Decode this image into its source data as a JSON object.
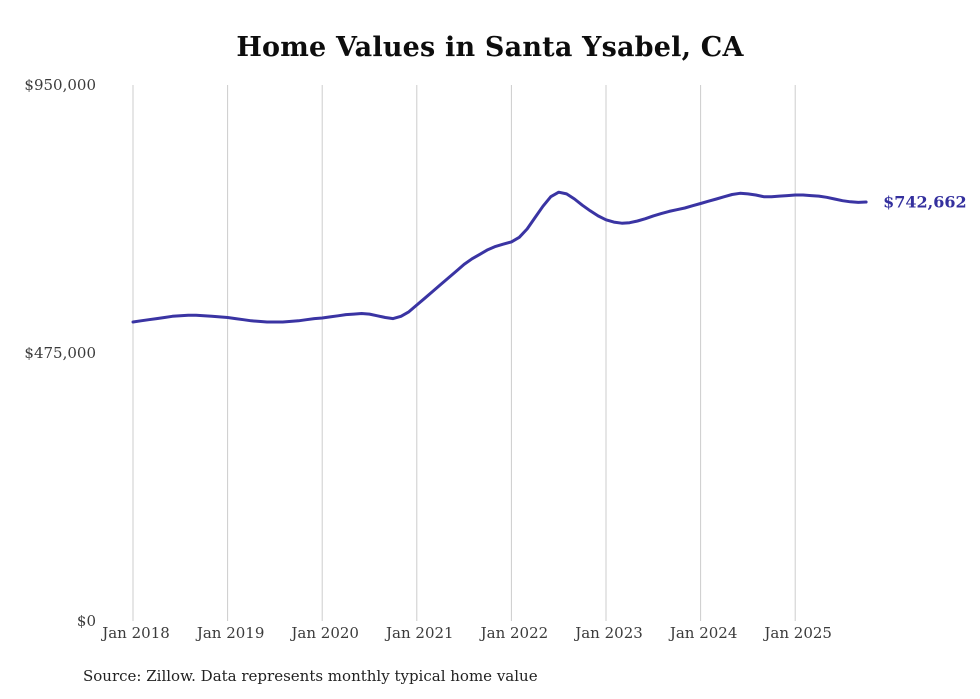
{
  "title": "Home Values in Santa Ysabel, CA",
  "source_note": "Source: Zillow. Data represents monthly typical home value",
  "chart_data": {
    "type": "line",
    "title": "Home Values in Santa Ysabel, CA",
    "x_start": "Jan 2018",
    "x_end": "Oct 2025",
    "x_tick_labels": [
      "Jan 2018",
      "Jan 2019",
      "Jan 2020",
      "Jan 2021",
      "Jan 2022",
      "Jan 2023",
      "Jan 2024",
      "Jan 2025"
    ],
    "y_ticks": [
      0,
      475000,
      950000
    ],
    "y_tick_labels": [
      "$0",
      "$475,000",
      "$950,000"
    ],
    "ylim": [
      0,
      950000
    ],
    "grid": "vertical-only",
    "legend": "none",
    "line_color": "#3a34a3",
    "end_label_color": "#34309e",
    "gridline_color": "#cccccc",
    "end_value": 742662,
    "end_value_label": "$742,662",
    "series": [
      {
        "name": "Monthly typical home value",
        "cadence": "monthly",
        "values": [
          530000,
          532000,
          534000,
          536000,
          538000,
          540000,
          541000,
          542000,
          542000,
          541000,
          540000,
          539000,
          538000,
          536000,
          534000,
          532000,
          531000,
          530000,
          530000,
          530000,
          531000,
          532000,
          534000,
          536000,
          537000,
          539000,
          541000,
          543000,
          544000,
          545000,
          544000,
          541000,
          538000,
          536000,
          540000,
          548000,
          560000,
          572000,
          584000,
          596000,
          608000,
          620000,
          632000,
          642000,
          650000,
          658000,
          664000,
          668000,
          672000,
          680000,
          695000,
          715000,
          735000,
          752000,
          760000,
          757000,
          748000,
          737000,
          727000,
          718000,
          711000,
          707000,
          705000,
          706000,
          709000,
          713000,
          718000,
          722000,
          726000,
          729000,
          732000,
          736000,
          740000,
          744000,
          748000,
          752000,
          756000,
          758000,
          757000,
          755000,
          752000,
          752000,
          753000,
          754000,
          755000,
          755000,
          754000,
          753000,
          751000,
          748000,
          745000,
          743000,
          742000,
          742662
        ]
      }
    ]
  }
}
